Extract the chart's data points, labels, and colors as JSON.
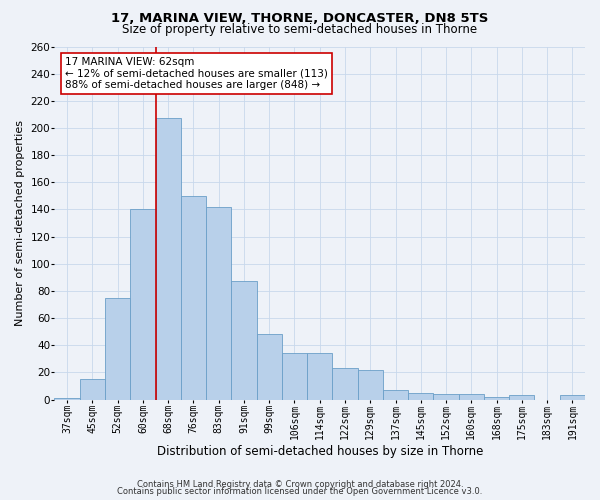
{
  "title": "17, MARINA VIEW, THORNE, DONCASTER, DN8 5TS",
  "subtitle": "Size of property relative to semi-detached houses in Thorne",
  "xlabel": "Distribution of semi-detached houses by size in Thorne",
  "ylabel": "Number of semi-detached properties",
  "categories": [
    "37sqm",
    "45sqm",
    "52sqm",
    "60sqm",
    "68sqm",
    "76sqm",
    "83sqm",
    "91sqm",
    "99sqm",
    "106sqm",
    "114sqm",
    "122sqm",
    "129sqm",
    "137sqm",
    "145sqm",
    "152sqm",
    "160sqm",
    "168sqm",
    "175sqm",
    "183sqm",
    "191sqm"
  ],
  "values": [
    1,
    15,
    75,
    140,
    207,
    150,
    142,
    87,
    48,
    34,
    34,
    23,
    22,
    7,
    5,
    4,
    4,
    2,
    3,
    0,
    3
  ],
  "bar_color": "#b8d0ea",
  "bar_edge_color": "#6a9fc8",
  "bar_edge_width": 0.6,
  "grid_color": "#c8d8ec",
  "bg_color": "#eef2f8",
  "vline_x": 3.5,
  "vline_color": "#cc0000",
  "annotation_line1": "17 MARINA VIEW: 62sqm",
  "annotation_line2": "← 12% of semi-detached houses are smaller (113)",
  "annotation_line3": "88% of semi-detached houses are larger (848) →",
  "annotation_box_color": "white",
  "annotation_box_edge_color": "#cc0000",
  "footer_line1": "Contains HM Land Registry data © Crown copyright and database right 2024.",
  "footer_line2": "Contains public sector information licensed under the Open Government Licence v3.0.",
  "ylim": [
    0,
    260
  ],
  "yticks": [
    0,
    20,
    40,
    60,
    80,
    100,
    120,
    140,
    160,
    180,
    200,
    220,
    240,
    260
  ]
}
